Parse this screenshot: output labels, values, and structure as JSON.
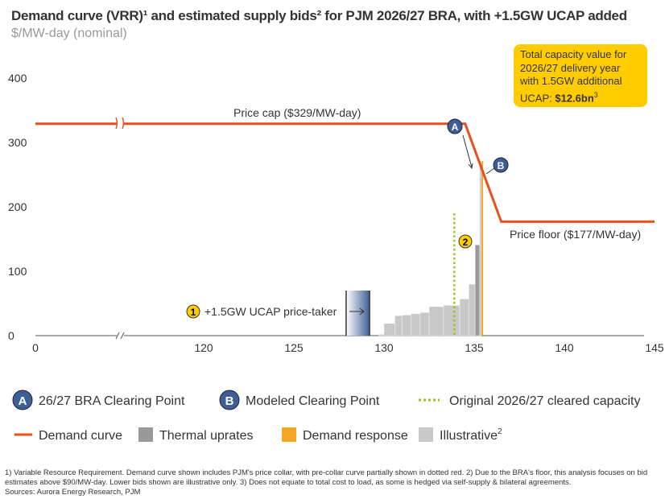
{
  "title": "Demand curve (VRR)¹ and estimated supply bids² for PJM 2026/27 BRA, with +1.5GW UCAP added",
  "subtitle": "$/MW-day (nominal)",
  "callout": {
    "text": "Total capacity value for 2026/27 delivery year with 1.5GW additional UCAP: ",
    "value": "$12.6bn",
    "sup": "3"
  },
  "colors": {
    "demand": "#E8501E",
    "thermal": "#999999",
    "dr": "#F5A623",
    "illustrative": "#C8C8C8",
    "original": "#9AC31C",
    "marker": "#3E5F96",
    "yellow": "#FFCC00"
  },
  "chart_data": {
    "type": "step-bar+line",
    "xlim": [
      0,
      145
    ],
    "ylim": [
      0,
      400
    ],
    "x_ticks": [
      "0",
      "120",
      "125",
      "130",
      "135",
      "140",
      "145"
    ],
    "y_ticks": [
      "0",
      "100",
      "200",
      "300",
      "400"
    ],
    "axis_break": "between 0 and 120",
    "demand_curve": [
      [
        0,
        329
      ],
      [
        134.5,
        329
      ],
      [
        136.5,
        177
      ],
      [
        145,
        177
      ]
    ],
    "supply_bids": [
      {
        "type": "illustrative",
        "x0": 129.7,
        "x1": 130.0,
        "value": 2
      },
      {
        "type": "illustrative",
        "x0": 130.0,
        "x1": 130.6,
        "value": 19
      },
      {
        "type": "illustrative",
        "x0": 130.6,
        "x1": 131.0,
        "value": 31
      },
      {
        "type": "illustrative",
        "x0": 131.0,
        "x1": 131.5,
        "value": 32
      },
      {
        "type": "illustrative",
        "x0": 131.5,
        "x1": 132.0,
        "value": 34
      },
      {
        "type": "illustrative",
        "x0": 132.0,
        "x1": 132.5,
        "value": 36
      },
      {
        "type": "illustrative",
        "x0": 132.5,
        "x1": 133.3,
        "value": 45
      },
      {
        "type": "illustrative",
        "x0": 133.3,
        "x1": 134.2,
        "value": 47
      },
      {
        "type": "illustrative",
        "x0": 134.2,
        "x1": 134.7,
        "value": 57
      },
      {
        "type": "illustrative",
        "x0": 134.7,
        "x1": 135.05,
        "value": 80
      },
      {
        "type": "thermal",
        "x0": 135.05,
        "x1": 135.3,
        "value": 141
      },
      {
        "type": "illustrative",
        "x0": 135.3,
        "x1": 135.4,
        "value": 271
      }
    ],
    "demand_response": {
      "x": 135.45,
      "value": 271
    },
    "original_cleared": {
      "x": 133.9,
      "value": 190
    },
    "price_taker": {
      "x0": 127.9,
      "x1": 129.2,
      "value": 70,
      "label": "+1.5GW UCAP price-taker",
      "badge": "1"
    },
    "badge2": "2",
    "points": [
      {
        "id": "A",
        "x": 134.4,
        "y": 329
      },
      {
        "id": "B",
        "x": 137.0,
        "y": 265
      }
    ],
    "annotations": {
      "price_cap": "Price cap ($329/MW-day)",
      "price_floor": "Price floor ($177/MW-day)"
    },
    "legend": [
      {
        "key": "A",
        "label": "26/27 BRA Clearing Point",
        "kind": "badge"
      },
      {
        "key": "B",
        "label": "Modeled Clearing Point",
        "kind": "badge"
      },
      {
        "key": "original",
        "label": "Original 2026/27 cleared capacity",
        "kind": "dotted"
      },
      {
        "key": "demand",
        "label": "Demand curve",
        "kind": "line"
      },
      {
        "key": "thermal",
        "label": "Thermal uprates",
        "kind": "box"
      },
      {
        "key": "dr",
        "label": "Demand response",
        "kind": "box"
      },
      {
        "key": "illustrative",
        "label": "Illustrative",
        "sup": "2",
        "kind": "box"
      }
    ]
  },
  "footnotes": [
    "1) Variable Resource Requirement. Demand curve shown includes PJM's price collar, with pre-collar curve partially shown in dotted red. 2) Due to the BRA's floor, this analysis focuses on bid estimates above $90/MW-day. Lower bids shown are illustrative only. 3) Does not equate to total cost to load, as some is hedged via self-supply & bilateral agreements.",
    "Sources: Aurora Energy Research, PJM"
  ]
}
